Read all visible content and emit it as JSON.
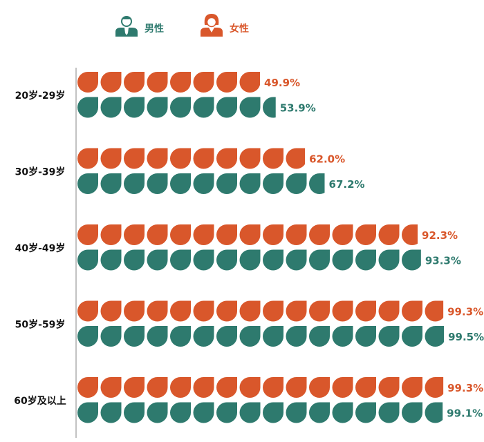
{
  "colors": {
    "male": "#2e7a6e",
    "female": "#d9572b",
    "axis": "#9a9a9a"
  },
  "legend": [
    {
      "key": "male",
      "label": "男性",
      "icon": "man-icon"
    },
    {
      "key": "female",
      "label": "女性",
      "icon": "woman-icon"
    }
  ],
  "chart_data": {
    "type": "bar",
    "orientation": "horizontal",
    "style": "pictogram",
    "unit_per_icon": 6.25,
    "xlim": [
      0,
      100
    ],
    "categories": [
      "20岁-29岁",
      "30岁-39岁",
      "40岁-49岁",
      "50岁-59岁",
      "60岁及以上"
    ],
    "series": [
      {
        "name": "女性",
        "key": "female",
        "values": [
          49.9,
          62.0,
          92.3,
          99.3,
          99.3
        ],
        "labels": [
          "49.9%",
          "62.0%",
          "92.3%",
          "99.3%",
          "99.3%"
        ]
      },
      {
        "name": "男性",
        "key": "male",
        "values": [
          53.9,
          67.2,
          93.3,
          99.5,
          99.1
        ],
        "labels": [
          "53.9%",
          "67.2%",
          "93.3%",
          "99.5%",
          "99.1%"
        ]
      }
    ],
    "legend_position": "top-left",
    "grid": false
  }
}
